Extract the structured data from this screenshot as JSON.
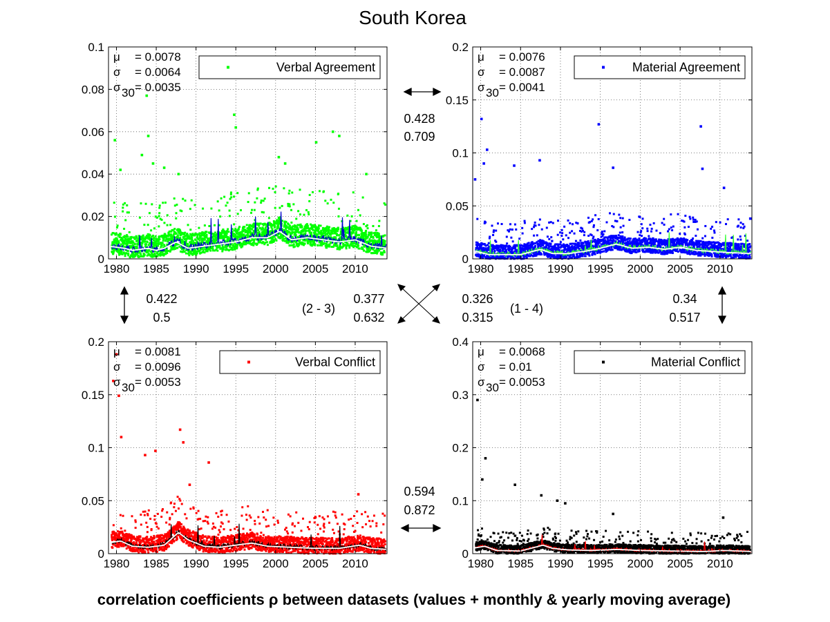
{
  "figure": {
    "title": "South Korea",
    "footer": "correlation coefficients ρ between datasets (values + monthly & yearly moving average)"
  },
  "chart_data": [
    {
      "type": "scatter",
      "legend": "Verbal Agreement",
      "legend_position": "top-right",
      "grid": true,
      "xlim": [
        1979,
        2014
      ],
      "ylim": [
        0,
        0.1
      ],
      "xticks": [
        "1980",
        "1985",
        "1990",
        "1995",
        "2000",
        "2005",
        "2010"
      ],
      "yticks": [
        "0",
        "0.02",
        "0.04",
        "0.06",
        "0.08",
        "0.1"
      ],
      "colors": {
        "points": "#00ff00",
        "monthly": "#0000cc",
        "yearly": "#ffffff"
      },
      "stats": [
        {
          "sym": "μ",
          "sub": "",
          "val": "= 0.0078"
        },
        {
          "sym": "σ",
          "sub": "",
          "val": "= 0.0064"
        },
        {
          "sym": "σ",
          "sub": "30",
          "val": "= 0.0035"
        }
      ],
      "base_mean": 0.0078,
      "spread": 0.0064,
      "yearly": [
        {
          "x": 1979,
          "y": 0.006
        },
        {
          "x": 1981,
          "y": 0.005
        },
        {
          "x": 1982,
          "y": 0.004
        },
        {
          "x": 1984,
          "y": 0.005
        },
        {
          "x": 1985,
          "y": 0.004
        },
        {
          "x": 1986,
          "y": 0.005
        },
        {
          "x": 1987.5,
          "y": 0.008
        },
        {
          "x": 1989,
          "y": 0.005
        },
        {
          "x": 1991,
          "y": 0.006
        },
        {
          "x": 1993,
          "y": 0.007
        },
        {
          "x": 1995,
          "y": 0.008
        },
        {
          "x": 1997,
          "y": 0.01
        },
        {
          "x": 1999,
          "y": 0.01
        },
        {
          "x": 2000.5,
          "y": 0.013
        },
        {
          "x": 2002,
          "y": 0.009
        },
        {
          "x": 2004,
          "y": 0.01
        },
        {
          "x": 2006,
          "y": 0.009
        },
        {
          "x": 2008,
          "y": 0.008
        },
        {
          "x": 2010,
          "y": 0.009
        },
        {
          "x": 2012,
          "y": 0.006
        },
        {
          "x": 2014,
          "y": 0.005
        }
      ],
      "outliers": [
        {
          "x": 1979.8,
          "y": 0.056
        },
        {
          "x": 1980.5,
          "y": 0.042
        },
        {
          "x": 1983.2,
          "y": 0.049
        },
        {
          "x": 1983.8,
          "y": 0.077
        },
        {
          "x": 1984.0,
          "y": 0.058
        },
        {
          "x": 1984.6,
          "y": 0.045
        },
        {
          "x": 1986.0,
          "y": 0.043
        },
        {
          "x": 1987.8,
          "y": 0.04
        },
        {
          "x": 1994.8,
          "y": 0.068
        },
        {
          "x": 1995.0,
          "y": 0.062
        },
        {
          "x": 2000.4,
          "y": 0.048
        },
        {
          "x": 2001.2,
          "y": 0.045
        },
        {
          "x": 2005.1,
          "y": 0.055
        },
        {
          "x": 2007.2,
          "y": 0.06
        },
        {
          "x": 2008.0,
          "y": 0.058
        },
        {
          "x": 2011.4,
          "y": 0.04
        }
      ]
    },
    {
      "type": "scatter",
      "legend": "Material Agreement",
      "legend_position": "top-right",
      "grid": true,
      "xlim": [
        1979,
        2014
      ],
      "ylim": [
        0,
        0.2
      ],
      "xticks": [
        "1980",
        "1985",
        "1990",
        "1995",
        "2000",
        "2005",
        "2010"
      ],
      "yticks": [
        "0",
        "0.05",
        "0.1",
        "0.15",
        "0.2"
      ],
      "colors": {
        "points": "#0000ff",
        "monthly": "#33ff33",
        "yearly": "#ffffff"
      },
      "stats": [
        {
          "sym": "μ",
          "sub": "",
          "val": "= 0.0076"
        },
        {
          "sym": "σ",
          "sub": "",
          "val": "= 0.0087"
        },
        {
          "sym": "σ",
          "sub": "30",
          "val": "= 0.0041"
        }
      ],
      "base_mean": 0.0076,
      "spread": 0.0087,
      "yearly": [
        {
          "x": 1979,
          "y": 0.008
        },
        {
          "x": 1981,
          "y": 0.004
        },
        {
          "x": 1983,
          "y": 0.004
        },
        {
          "x": 1985,
          "y": 0.004
        },
        {
          "x": 1987.5,
          "y": 0.009
        },
        {
          "x": 1989,
          "y": 0.005
        },
        {
          "x": 1991,
          "y": 0.005
        },
        {
          "x": 1993,
          "y": 0.007
        },
        {
          "x": 1995,
          "y": 0.01
        },
        {
          "x": 1997,
          "y": 0.014
        },
        {
          "x": 1999,
          "y": 0.01
        },
        {
          "x": 2001,
          "y": 0.011
        },
        {
          "x": 2003,
          "y": 0.009
        },
        {
          "x": 2005,
          "y": 0.011
        },
        {
          "x": 2007,
          "y": 0.008
        },
        {
          "x": 2009,
          "y": 0.007
        },
        {
          "x": 2011,
          "y": 0.006
        },
        {
          "x": 2014,
          "y": 0.005
        }
      ],
      "outliers": [
        {
          "x": 1979.3,
          "y": 0.075
        },
        {
          "x": 1980.1,
          "y": 0.132
        },
        {
          "x": 1980.8,
          "y": 0.103
        },
        {
          "x": 1980.4,
          "y": 0.09
        },
        {
          "x": 1984.2,
          "y": 0.088
        },
        {
          "x": 1987.4,
          "y": 0.093
        },
        {
          "x": 1994.8,
          "y": 0.127
        },
        {
          "x": 1996.6,
          "y": 0.086
        },
        {
          "x": 2007.6,
          "y": 0.125
        },
        {
          "x": 2007.8,
          "y": 0.085
        },
        {
          "x": 2010.5,
          "y": 0.067
        },
        {
          "x": 2013.8,
          "y": 0.038
        }
      ]
    },
    {
      "type": "scatter",
      "legend": "Verbal Conflict",
      "legend_position": "top-right",
      "grid": true,
      "xlim": [
        1979,
        2014
      ],
      "ylim": [
        0,
        0.2
      ],
      "xticks": [
        "1980",
        "1985",
        "1990",
        "1995",
        "2000",
        "2005",
        "2010"
      ],
      "yticks": [
        "0",
        "0.05",
        "0.1",
        "0.15",
        "0.2"
      ],
      "colors": {
        "points": "#ff0000",
        "monthly": "#000000",
        "yearly": "#ffffff"
      },
      "stats": [
        {
          "sym": "μ",
          "sub": "",
          "val": "= 0.0081"
        },
        {
          "sym": "σ",
          "sub": "",
          "val": "= 0.0096"
        },
        {
          "sym": "σ",
          "sub": "30",
          "val": "= 0.0053"
        }
      ],
      "base_mean": 0.0081,
      "spread": 0.0096,
      "yearly": [
        {
          "x": 1979,
          "y": 0.01
        },
        {
          "x": 1980.5,
          "y": 0.012
        },
        {
          "x": 1982,
          "y": 0.007
        },
        {
          "x": 1984,
          "y": 0.006
        },
        {
          "x": 1986,
          "y": 0.008
        },
        {
          "x": 1987.8,
          "y": 0.02
        },
        {
          "x": 1989,
          "y": 0.013
        },
        {
          "x": 1991,
          "y": 0.007
        },
        {
          "x": 1993,
          "y": 0.006
        },
        {
          "x": 1995,
          "y": 0.008
        },
        {
          "x": 1997,
          "y": 0.01
        },
        {
          "x": 1999,
          "y": 0.007
        },
        {
          "x": 2002,
          "y": 0.006
        },
        {
          "x": 2005,
          "y": 0.005
        },
        {
          "x": 2008,
          "y": 0.005
        },
        {
          "x": 2010.5,
          "y": 0.008
        },
        {
          "x": 2012,
          "y": 0.005
        },
        {
          "x": 2014,
          "y": 0.004
        }
      ],
      "outliers": [
        {
          "x": 1979.6,
          "y": 0.163
        },
        {
          "x": 1980.0,
          "y": 0.188
        },
        {
          "x": 1980.3,
          "y": 0.149
        },
        {
          "x": 1980.6,
          "y": 0.11
        },
        {
          "x": 1983.6,
          "y": 0.093
        },
        {
          "x": 1984.9,
          "y": 0.097
        },
        {
          "x": 1988.0,
          "y": 0.117
        },
        {
          "x": 1988.4,
          "y": 0.105
        },
        {
          "x": 1991.6,
          "y": 0.086
        },
        {
          "x": 1989.2,
          "y": 0.065
        },
        {
          "x": 2010.4,
          "y": 0.056
        }
      ]
    },
    {
      "type": "scatter",
      "legend": "Material Conflict",
      "legend_position": "top-right",
      "grid": true,
      "xlim": [
        1979,
        2014
      ],
      "ylim": [
        0,
        0.4
      ],
      "xticks": [
        "1980",
        "1985",
        "1990",
        "1995",
        "2000",
        "2005",
        "2010"
      ],
      "yticks": [
        "0",
        "0.1",
        "0.2",
        "0.3",
        "0.4"
      ],
      "colors": {
        "points": "#000000",
        "monthly": "#ff0000",
        "yearly": "#ffffff"
      },
      "stats": [
        {
          "sym": "μ",
          "sub": "",
          "val": "= 0.0068"
        },
        {
          "sym": "σ",
          "sub": "",
          "val": "= 0.01"
        },
        {
          "sym": "σ",
          "sub": "30",
          "val": "= 0.0053"
        }
      ],
      "base_mean": 0.0068,
      "spread": 0.01,
      "yearly": [
        {
          "x": 1979,
          "y": 0.01
        },
        {
          "x": 1980.5,
          "y": 0.014
        },
        {
          "x": 1982,
          "y": 0.006
        },
        {
          "x": 1985,
          "y": 0.005
        },
        {
          "x": 1987.8,
          "y": 0.016
        },
        {
          "x": 1989,
          "y": 0.01
        },
        {
          "x": 1991,
          "y": 0.007
        },
        {
          "x": 1994,
          "y": 0.006
        },
        {
          "x": 1997,
          "y": 0.008
        },
        {
          "x": 2000,
          "y": 0.006
        },
        {
          "x": 2004,
          "y": 0.005
        },
        {
          "x": 2008,
          "y": 0.004
        },
        {
          "x": 2010.5,
          "y": 0.006
        },
        {
          "x": 2014,
          "y": 0.004
        }
      ],
      "outliers": [
        {
          "x": 1979.6,
          "y": 0.29
        },
        {
          "x": 1980.6,
          "y": 0.18
        },
        {
          "x": 1980.2,
          "y": 0.14
        },
        {
          "x": 1984.3,
          "y": 0.13
        },
        {
          "x": 1987.6,
          "y": 0.11
        },
        {
          "x": 1989.6,
          "y": 0.1
        },
        {
          "x": 1990.6,
          "y": 0.095
        },
        {
          "x": 1996.6,
          "y": 0.075
        },
        {
          "x": 2010.4,
          "y": 0.068
        }
      ]
    }
  ],
  "correlations": {
    "top": [
      "0.428",
      "0.709"
    ],
    "left": [
      "0.422",
      "0.5"
    ],
    "right": [
      "0.34",
      "0.517"
    ],
    "bottom": [
      "0.594",
      "0.872"
    ],
    "diag_23_label": "(2 - 3)",
    "diag_23": [
      "0.377",
      "0.632"
    ],
    "diag_14": [
      "0.326",
      "0.315"
    ],
    "diag_14_label": "(1 - 4)"
  }
}
